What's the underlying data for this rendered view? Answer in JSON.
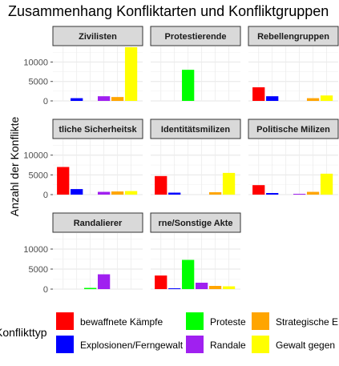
{
  "chart_data": {
    "type": "bar",
    "title": "Zusammenhang Konfliktarten und Konfliktgruppen",
    "ylabel": "Anzahl der Konflikte",
    "xlabel": "",
    "ylim": [
      0,
      14000
    ],
    "yticks": [
      0,
      5000,
      10000
    ],
    "ytick_labels": [
      "0",
      "5000",
      "10000"
    ],
    "grid": true,
    "legend": {
      "title": "Konflikttyp",
      "position": "bottom",
      "entries": [
        {
          "label": "bewaffnete Kämpfe",
          "color": "#ff0000"
        },
        {
          "label": "Explosionen/Ferngewalt",
          "color": "#0000ff"
        },
        {
          "label": "Proteste",
          "color": "#00ff00"
        },
        {
          "label": "Randale",
          "color": "#a020f0"
        },
        {
          "label": "Strategische E",
          "color": "#ffa500"
        },
        {
          "label": "Gewalt gegen",
          "color": "#ffff00"
        }
      ]
    },
    "series_order": [
      "bewaffnete Kämpfe",
      "Explosionen/Ferngewalt",
      "Proteste",
      "Randale",
      "Strategische E",
      "Gewalt gegen"
    ],
    "panels": [
      {
        "label": "Zivilisten",
        "values": [
          0,
          700,
          0,
          1200,
          1000,
          13800
        ]
      },
      {
        "label": "Protestierende",
        "values": [
          0,
          0,
          8000,
          0,
          0,
          0
        ]
      },
      {
        "label": "Rebellengruppen",
        "values": [
          3500,
          1200,
          0,
          0,
          700,
          1400
        ]
      },
      {
        "label": "tliche Sicherheitsk",
        "values": [
          7000,
          1400,
          0,
          700,
          800,
          900
        ]
      },
      {
        "label": "Identitätsmilizen",
        "values": [
          4700,
          500,
          0,
          0,
          600,
          5500
        ]
      },
      {
        "label": "Politische Milizen",
        "values": [
          2400,
          400,
          0,
          200,
          700,
          5300
        ]
      },
      {
        "label": "Randalierer",
        "values": [
          0,
          0,
          300,
          3700,
          0,
          0
        ]
      },
      {
        "label": "rne/Sonstige Akte",
        "values": [
          3400,
          200,
          7300,
          1600,
          800,
          700
        ]
      }
    ]
  }
}
